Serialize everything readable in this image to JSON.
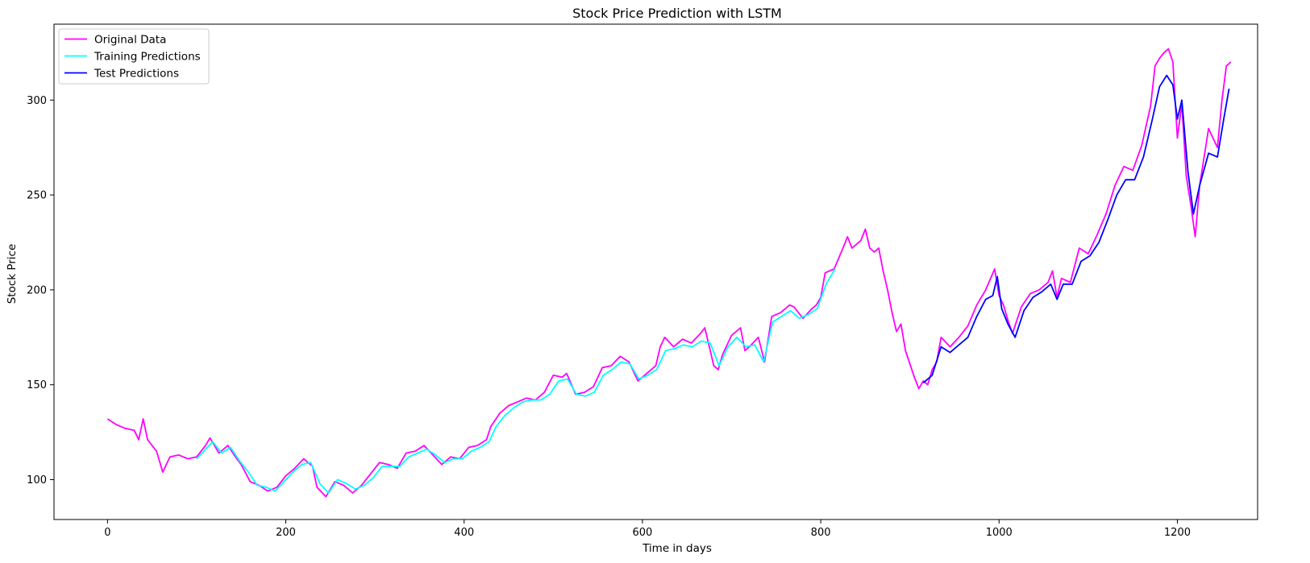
{
  "chart_data": {
    "type": "line",
    "title": "Stock Price Prediction with LSTM",
    "xlabel": "Time in days",
    "ylabel": "Stock Price",
    "xlim": [
      -60,
      1290
    ],
    "ylim": [
      79,
      340
    ],
    "xticks": [
      0,
      200,
      400,
      600,
      800,
      1000,
      1200
    ],
    "yticks": [
      100,
      150,
      200,
      250,
      300
    ],
    "grid": false,
    "legend_position": "top-left",
    "series": [
      {
        "name": "Original Data",
        "color": "#ff00ff",
        "points": [
          [
            0,
            132
          ],
          [
            10,
            129
          ],
          [
            20,
            127
          ],
          [
            30,
            126
          ],
          [
            35,
            121
          ],
          [
            40,
            132
          ],
          [
            45,
            121
          ],
          [
            55,
            115
          ],
          [
            62,
            104
          ],
          [
            70,
            112
          ],
          [
            80,
            113
          ],
          [
            90,
            111
          ],
          [
            100,
            112
          ],
          [
            110,
            118
          ],
          [
            115,
            122
          ],
          [
            125,
            114
          ],
          [
            135,
            118
          ],
          [
            145,
            111
          ],
          [
            150,
            108
          ],
          [
            160,
            99
          ],
          [
            170,
            97
          ],
          [
            180,
            94
          ],
          [
            190,
            96
          ],
          [
            200,
            102
          ],
          [
            210,
            106
          ],
          [
            220,
            111
          ],
          [
            230,
            107
          ],
          [
            235,
            96
          ],
          [
            245,
            91
          ],
          [
            255,
            99
          ],
          [
            265,
            97
          ],
          [
            275,
            93
          ],
          [
            285,
            97
          ],
          [
            295,
            103
          ],
          [
            305,
            109
          ],
          [
            315,
            108
          ],
          [
            325,
            106
          ],
          [
            335,
            114
          ],
          [
            345,
            115
          ],
          [
            355,
            118
          ],
          [
            365,
            113
          ],
          [
            375,
            108
          ],
          [
            385,
            112
          ],
          [
            395,
            111
          ],
          [
            405,
            117
          ],
          [
            415,
            118
          ],
          [
            425,
            121
          ],
          [
            430,
            128
          ],
          [
            440,
            135
          ],
          [
            450,
            139
          ],
          [
            460,
            141
          ],
          [
            470,
            143
          ],
          [
            480,
            142
          ],
          [
            490,
            146
          ],
          [
            500,
            155
          ],
          [
            510,
            154
          ],
          [
            515,
            156
          ],
          [
            525,
            145
          ],
          [
            535,
            146
          ],
          [
            545,
            149
          ],
          [
            555,
            159
          ],
          [
            565,
            160
          ],
          [
            575,
            165
          ],
          [
            585,
            162
          ],
          [
            595,
            152
          ],
          [
            605,
            156
          ],
          [
            615,
            160
          ],
          [
            620,
            170
          ],
          [
            625,
            175
          ],
          [
            635,
            170
          ],
          [
            645,
            174
          ],
          [
            655,
            172
          ],
          [
            665,
            177
          ],
          [
            670,
            180
          ],
          [
            675,
            170
          ],
          [
            680,
            160
          ],
          [
            685,
            158
          ],
          [
            690,
            166
          ],
          [
            700,
            176
          ],
          [
            710,
            180
          ],
          [
            715,
            168
          ],
          [
            720,
            170
          ],
          [
            730,
            175
          ],
          [
            737,
            162
          ],
          [
            745,
            186
          ],
          [
            755,
            188
          ],
          [
            765,
            192
          ],
          [
            770,
            191
          ],
          [
            780,
            185
          ],
          [
            790,
            190
          ],
          [
            795,
            192
          ],
          [
            800,
            196
          ],
          [
            805,
            209
          ],
          [
            815,
            211
          ],
          [
            825,
            222
          ],
          [
            830,
            228
          ],
          [
            835,
            222
          ],
          [
            845,
            226
          ],
          [
            850,
            232
          ],
          [
            855,
            222
          ],
          [
            860,
            220
          ],
          [
            865,
            222
          ],
          [
            870,
            210
          ],
          [
            875,
            200
          ],
          [
            880,
            188
          ],
          [
            885,
            178
          ],
          [
            890,
            182
          ],
          [
            895,
            168
          ],
          [
            905,
            154
          ],
          [
            910,
            148
          ],
          [
            915,
            152
          ],
          [
            920,
            150
          ],
          [
            925,
            158
          ],
          [
            930,
            162
          ],
          [
            935,
            175
          ],
          [
            945,
            170
          ],
          [
            955,
            175
          ],
          [
            965,
            181
          ],
          [
            975,
            192
          ],
          [
            985,
            200
          ],
          [
            995,
            211
          ],
          [
            1000,
            197
          ],
          [
            1005,
            192
          ],
          [
            1010,
            184
          ],
          [
            1015,
            177
          ],
          [
            1025,
            191
          ],
          [
            1035,
            198
          ],
          [
            1045,
            200
          ],
          [
            1055,
            204
          ],
          [
            1060,
            210
          ],
          [
            1065,
            196
          ],
          [
            1070,
            206
          ],
          [
            1080,
            204
          ],
          [
            1090,
            222
          ],
          [
            1100,
            219
          ],
          [
            1110,
            229
          ],
          [
            1120,
            240
          ],
          [
            1130,
            255
          ],
          [
            1140,
            265
          ],
          [
            1150,
            263
          ],
          [
            1160,
            276
          ],
          [
            1170,
            297
          ],
          [
            1175,
            318
          ],
          [
            1180,
            322
          ],
          [
            1185,
            325
          ],
          [
            1190,
            327
          ],
          [
            1195,
            320
          ],
          [
            1200,
            280
          ],
          [
            1205,
            298
          ],
          [
            1210,
            260
          ],
          [
            1215,
            245
          ],
          [
            1220,
            228
          ],
          [
            1225,
            255
          ],
          [
            1235,
            285
          ],
          [
            1245,
            275
          ],
          [
            1250,
            300
          ],
          [
            1255,
            318
          ],
          [
            1260,
            320
          ]
        ]
      },
      {
        "name": "Training Predictions",
        "color": "#00ffff",
        "points": [
          [
            100,
            111
          ],
          [
            110,
            116
          ],
          [
            118,
            120
          ],
          [
            128,
            114
          ],
          [
            138,
            117
          ],
          [
            148,
            110
          ],
          [
            158,
            104
          ],
          [
            168,
            97
          ],
          [
            178,
            96
          ],
          [
            188,
            94
          ],
          [
            198,
            99
          ],
          [
            208,
            104
          ],
          [
            218,
            108
          ],
          [
            228,
            109
          ],
          [
            238,
            98
          ],
          [
            248,
            93
          ],
          [
            258,
            100
          ],
          [
            268,
            98
          ],
          [
            278,
            95
          ],
          [
            288,
            97
          ],
          [
            298,
            101
          ],
          [
            308,
            107
          ],
          [
            318,
            107
          ],
          [
            328,
            107
          ],
          [
            338,
            112
          ],
          [
            348,
            114
          ],
          [
            358,
            116
          ],
          [
            368,
            113
          ],
          [
            378,
            109
          ],
          [
            388,
            111
          ],
          [
            398,
            111
          ],
          [
            408,
            115
          ],
          [
            418,
            117
          ],
          [
            428,
            120
          ],
          [
            436,
            128
          ],
          [
            446,
            134
          ],
          [
            456,
            138
          ],
          [
            466,
            141
          ],
          [
            476,
            142
          ],
          [
            486,
            142
          ],
          [
            496,
            145
          ],
          [
            506,
            152
          ],
          [
            516,
            153
          ],
          [
            526,
            145
          ],
          [
            536,
            144
          ],
          [
            546,
            146
          ],
          [
            556,
            155
          ],
          [
            566,
            158
          ],
          [
            576,
            162
          ],
          [
            586,
            161
          ],
          [
            596,
            153
          ],
          [
            606,
            155
          ],
          [
            616,
            158
          ],
          [
            626,
            168
          ],
          [
            636,
            169
          ],
          [
            646,
            171
          ],
          [
            656,
            170
          ],
          [
            666,
            173
          ],
          [
            676,
            172
          ],
          [
            686,
            160
          ],
          [
            696,
            170
          ],
          [
            706,
            175
          ],
          [
            716,
            170
          ],
          [
            726,
            171
          ],
          [
            736,
            162
          ],
          [
            746,
            183
          ],
          [
            756,
            186
          ],
          [
            766,
            189
          ],
          [
            776,
            185
          ],
          [
            786,
            187
          ],
          [
            796,
            190
          ],
          [
            806,
            203
          ],
          [
            816,
            211
          ]
        ]
      },
      {
        "name": "Test Predictions",
        "color": "#0000ff",
        "points": [
          [
            915,
            151
          ],
          [
            925,
            155
          ],
          [
            935,
            170
          ],
          [
            945,
            167
          ],
          [
            955,
            171
          ],
          [
            965,
            175
          ],
          [
            975,
            186
          ],
          [
            985,
            195
          ],
          [
            993,
            197
          ],
          [
            998,
            207
          ],
          [
            1003,
            190
          ],
          [
            1010,
            182
          ],
          [
            1018,
            175
          ],
          [
            1028,
            189
          ],
          [
            1038,
            196
          ],
          [
            1048,
            199
          ],
          [
            1058,
            203
          ],
          [
            1065,
            195
          ],
          [
            1072,
            203
          ],
          [
            1082,
            203
          ],
          [
            1092,
            215
          ],
          [
            1102,
            218
          ],
          [
            1112,
            225
          ],
          [
            1122,
            237
          ],
          [
            1132,
            250
          ],
          [
            1142,
            258
          ],
          [
            1152,
            258
          ],
          [
            1162,
            270
          ],
          [
            1172,
            290
          ],
          [
            1180,
            307
          ],
          [
            1188,
            313
          ],
          [
            1195,
            308
          ],
          [
            1200,
            290
          ],
          [
            1205,
            300
          ],
          [
            1212,
            262
          ],
          [
            1218,
            240
          ],
          [
            1225,
            255
          ],
          [
            1235,
            272
          ],
          [
            1245,
            270
          ],
          [
            1252,
            290
          ],
          [
            1258,
            306
          ]
        ]
      }
    ]
  }
}
